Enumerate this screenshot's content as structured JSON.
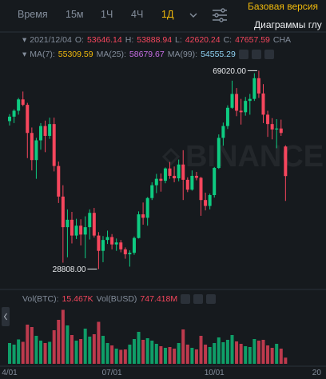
{
  "toolbar": {
    "intervals": [
      "Время",
      "15м",
      "1Ч",
      "4Ч",
      "1Д"
    ],
    "active": 4
  },
  "top_right": {
    "basic_version": "Базовая версия",
    "depth_chart": "Диаграммы глу"
  },
  "chart_data": {
    "type": "candlestick",
    "date": "2021/12/04",
    "ohlc_labels": [
      "O:",
      "H:",
      "L:",
      "C:",
      "CHA"
    ],
    "moving_averages": [
      {
        "name": "MA(7):",
        "value": 55309.59,
        "color": "#f0b90b"
      },
      {
        "name": "MA(25):",
        "value": 58679.67,
        "color": "#c86ee6"
      },
      {
        "name": "MA(99):",
        "value": 54555.29,
        "color": "#8fd3f4"
      }
    ],
    "watermark": "BINANCE",
    "up_color": "#0ecb81",
    "down_color": "#f6465d",
    "ylim": [
      25000,
      72000
    ],
    "price_marks": [
      {
        "value": 69020,
        "label": "69020.00"
      },
      {
        "value": 28808,
        "label": "28808.00"
      }
    ],
    "categories": [
      "4/01",
      null,
      null,
      null,
      null,
      null,
      null,
      null,
      null,
      null,
      null,
      null,
      null,
      null,
      null,
      null,
      null,
      null,
      null,
      null,
      null,
      null,
      null,
      "07/01",
      null,
      null,
      null,
      null,
      null,
      null,
      null,
      null,
      null,
      null,
      null,
      null,
      null,
      null,
      null,
      null,
      null,
      null,
      null,
      null,
      null,
      null,
      "10/01",
      null,
      null,
      null,
      null,
      null,
      null,
      null,
      null,
      null,
      null,
      null,
      null,
      null,
      null,
      null,
      null,
      null,
      null,
      null,
      null,
      null,
      null,
      "20"
    ],
    "candles": [
      [
        58800,
        60200,
        57900,
        59700
      ],
      [
        59700,
        61200,
        58400,
        60900
      ],
      [
        60900,
        63500,
        60100,
        63200
      ],
      [
        63200,
        64800,
        61800,
        62100
      ],
      [
        62100,
        62500,
        51300,
        56400
      ],
      [
        56400,
        57500,
        48800,
        50900
      ],
      [
        50900,
        55400,
        47100,
        54900
      ],
      [
        54900,
        58400,
        53000,
        57800
      ],
      [
        57800,
        58900,
        52500,
        55800
      ],
      [
        55800,
        59500,
        55200,
        58200
      ],
      [
        58200,
        59500,
        48600,
        49700
      ],
      [
        49700,
        50600,
        42200,
        43500
      ],
      [
        43500,
        45800,
        30100,
        37300
      ],
      [
        37300,
        40900,
        31200,
        38800
      ],
      [
        38800,
        40400,
        34000,
        35600
      ],
      [
        35600,
        39000,
        34900,
        37600
      ],
      [
        37600,
        38900,
        33600,
        35800
      ],
      [
        35800,
        39500,
        31000,
        37300
      ],
      [
        37300,
        40900,
        34800,
        40200
      ],
      [
        40200,
        41200,
        35200,
        35600
      ],
      [
        35600,
        36300,
        28808,
        32500
      ],
      [
        32500,
        35500,
        30200,
        34700
      ],
      [
        34700,
        36600,
        33900,
        35300
      ],
      [
        35300,
        35900,
        32800,
        33800
      ],
      [
        33800,
        35000,
        32500,
        34200
      ],
      [
        34200,
        34700,
        32200,
        32800
      ],
      [
        32800,
        33200,
        30900,
        31800
      ],
      [
        31800,
        32600,
        29300,
        32100
      ],
      [
        32100,
        35400,
        31700,
        35100
      ],
      [
        35100,
        40500,
        35000,
        39900
      ],
      [
        39900,
        42300,
        37800,
        39200
      ],
      [
        39200,
        43400,
        37600,
        43200
      ],
      [
        43200,
        46400,
        42800,
        45800
      ],
      [
        45800,
        48100,
        44200,
        47100
      ],
      [
        47100,
        48200,
        44500,
        46700
      ],
      [
        46700,
        49400,
        46200,
        49200
      ],
      [
        49200,
        50500,
        47100,
        47700
      ],
      [
        47700,
        49600,
        46400,
        47200
      ],
      [
        47200,
        51000,
        46600,
        50000
      ],
      [
        50000,
        52900,
        42800,
        46900
      ],
      [
        46900,
        47400,
        44400,
        44900
      ],
      [
        44900,
        48800,
        44700,
        47700
      ],
      [
        47700,
        48500,
        46800,
        47300
      ],
      [
        47300,
        47500,
        39600,
        42800
      ],
      [
        42800,
        44300,
        40700,
        41600
      ],
      [
        41600,
        44100,
        40900,
        43800
      ],
      [
        43800,
        49500,
        43300,
        49300
      ],
      [
        49300,
        56100,
        49100,
        55400
      ],
      [
        55400,
        58500,
        53800,
        57800
      ],
      [
        57800,
        62000,
        57200,
        61500
      ],
      [
        61500,
        67000,
        61300,
        64300
      ],
      [
        64300,
        65500,
        59800,
        60900
      ],
      [
        60900,
        63300,
        58100,
        60600
      ],
      [
        60600,
        63700,
        59900,
        62900
      ],
      [
        62900,
        64300,
        60100,
        63300
      ],
      [
        63300,
        68500,
        62900,
        67500
      ],
      [
        67500,
        69020,
        63500,
        64400
      ],
      [
        64400,
        66300,
        58400,
        60100
      ],
      [
        60100,
        60900,
        55600,
        58200
      ],
      [
        58200,
        59400,
        55100,
        57100
      ],
      [
        57100,
        59200,
        53300,
        57300
      ],
      [
        57300,
        59100,
        55800,
        56400
      ],
      [
        53646.14,
        53888.94,
        42620.24,
        47657.59
      ],
      null,
      null,
      null,
      null,
      null,
      null,
      null
    ],
    "volume": {
      "legend": [
        {
          "name": "Vol(BTC):",
          "value_label": "15.467K"
        },
        {
          "name": "Vol(BUSD)",
          "value_label": "747.418M"
        }
      ],
      "ylim": [
        0,
        140000
      ],
      "values": [
        52000,
        48000,
        61000,
        55000,
        98000,
        92000,
        70000,
        58000,
        52000,
        55000,
        84000,
        110000,
        135000,
        96000,
        72000,
        58000,
        62000,
        88000,
        68000,
        74000,
        105000,
        70000,
        52000,
        46000,
        38000,
        35000,
        36000,
        48000,
        62000,
        80000,
        60000,
        64000,
        58000,
        50000,
        44000,
        40000,
        42000,
        38000,
        52000,
        86000,
        48000,
        40000,
        36000,
        70000,
        48000,
        42000,
        52000,
        66000,
        54000,
        60000,
        72000,
        56000,
        50000,
        44000,
        42000,
        62000,
        58000,
        60000,
        46000,
        40000,
        50000,
        38000,
        15467,
        null,
        null,
        null,
        null,
        null,
        null,
        null
      ]
    }
  }
}
